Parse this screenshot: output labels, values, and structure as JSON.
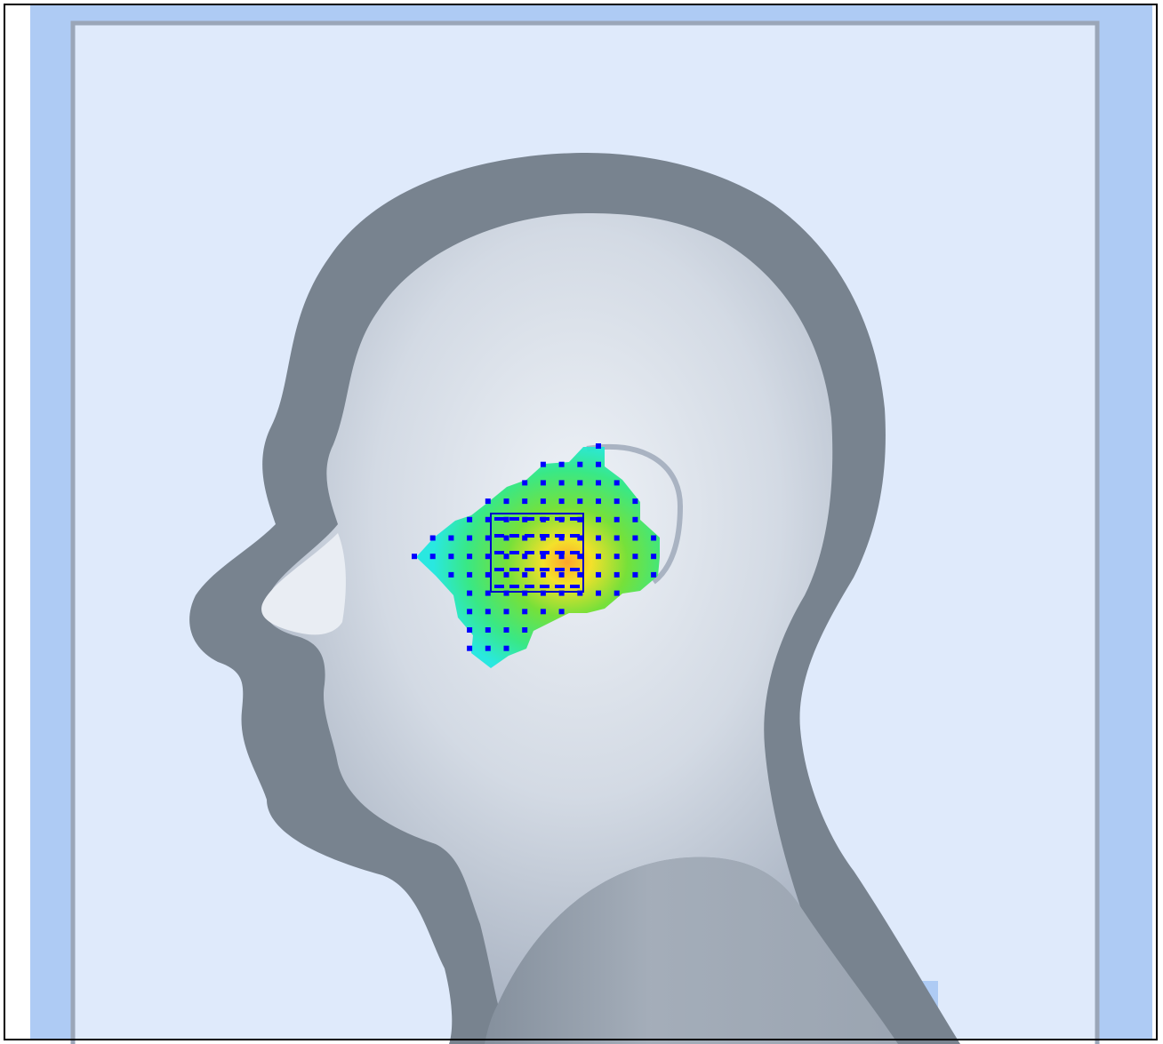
{
  "scene": {
    "subject": "head-phantom",
    "colors": {
      "background_outer": "#aecbf4",
      "background_inner": "#dfeafb",
      "frame": "#9aa6b8",
      "shadow": "#78838f",
      "head_light": "#dde3ec",
      "head_mid": "#bfc8d5",
      "shoulder": "#aecbf4",
      "probe_points": "#0000ff",
      "heat_low": "#20e8e0",
      "heat_mid": "#60e030",
      "heat_high": "#ffb020"
    }
  }
}
